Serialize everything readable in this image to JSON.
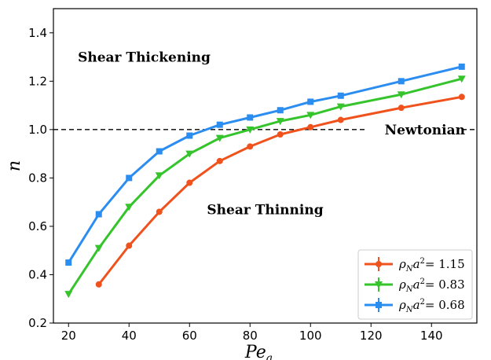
{
  "chart_data": {
    "type": "line",
    "xlabel": "Pe",
    "xlabel_sub": "a",
    "ylabel": "n",
    "xlim": [
      15,
      155
    ],
    "ylim": [
      0.2,
      1.5
    ],
    "xticks": [
      20,
      40,
      60,
      80,
      100,
      120,
      140
    ],
    "yticks": [
      0.2,
      0.4,
      0.6,
      0.8,
      1.0,
      1.2,
      1.4
    ],
    "xtick_labels": [
      "20",
      "40",
      "60",
      "80",
      "100",
      "120",
      "140"
    ],
    "ytick_labels": [
      "0.2",
      "0.4",
      "0.6",
      "0.8",
      "1.0",
      "1.2",
      "1.4"
    ],
    "legend_position": "lower-right",
    "reference_line": {
      "y": 1.0,
      "style": "dashed",
      "label": "Newtonian"
    },
    "annotations": [
      {
        "text": "Shear Thickening",
        "x": 45,
        "y": 1.3
      },
      {
        "text": "Shear Thinning",
        "x": 85,
        "y": 0.67
      }
    ],
    "series": [
      {
        "label_prefix": "ρ",
        "label_sub": "N",
        "label_base": "a",
        "label_sup": "2",
        "label_value": "= 1.15",
        "color": "#f0521d",
        "marker": "circle",
        "x": [
          30,
          40,
          50,
          60,
          70,
          80,
          90,
          100,
          110,
          130,
          150
        ],
        "y": [
          0.36,
          0.52,
          0.66,
          0.78,
          0.87,
          0.93,
          0.98,
          1.01,
          1.04,
          1.09,
          1.135
        ]
      },
      {
        "label_prefix": "ρ",
        "label_sub": "N",
        "label_base": "a",
        "label_sup": "2",
        "label_value": "= 0.83",
        "color": "#35c42c",
        "marker": "triangle-down",
        "x": [
          20,
          30,
          40,
          50,
          60,
          70,
          80,
          90,
          100,
          110,
          130,
          150
        ],
        "y": [
          0.32,
          0.51,
          0.68,
          0.81,
          0.9,
          0.965,
          1.0,
          1.035,
          1.06,
          1.095,
          1.145,
          1.21
        ]
      },
      {
        "label_prefix": "ρ",
        "label_sub": "N",
        "label_base": "a",
        "label_sup": "2",
        "label_value": "= 0.68",
        "color": "#2b8df0",
        "marker": "square",
        "x": [
          20,
          30,
          40,
          50,
          60,
          70,
          80,
          90,
          100,
          110,
          130,
          150
        ],
        "y": [
          0.45,
          0.65,
          0.8,
          0.91,
          0.975,
          1.02,
          1.05,
          1.08,
          1.115,
          1.14,
          1.2,
          1.26
        ]
      }
    ]
  }
}
